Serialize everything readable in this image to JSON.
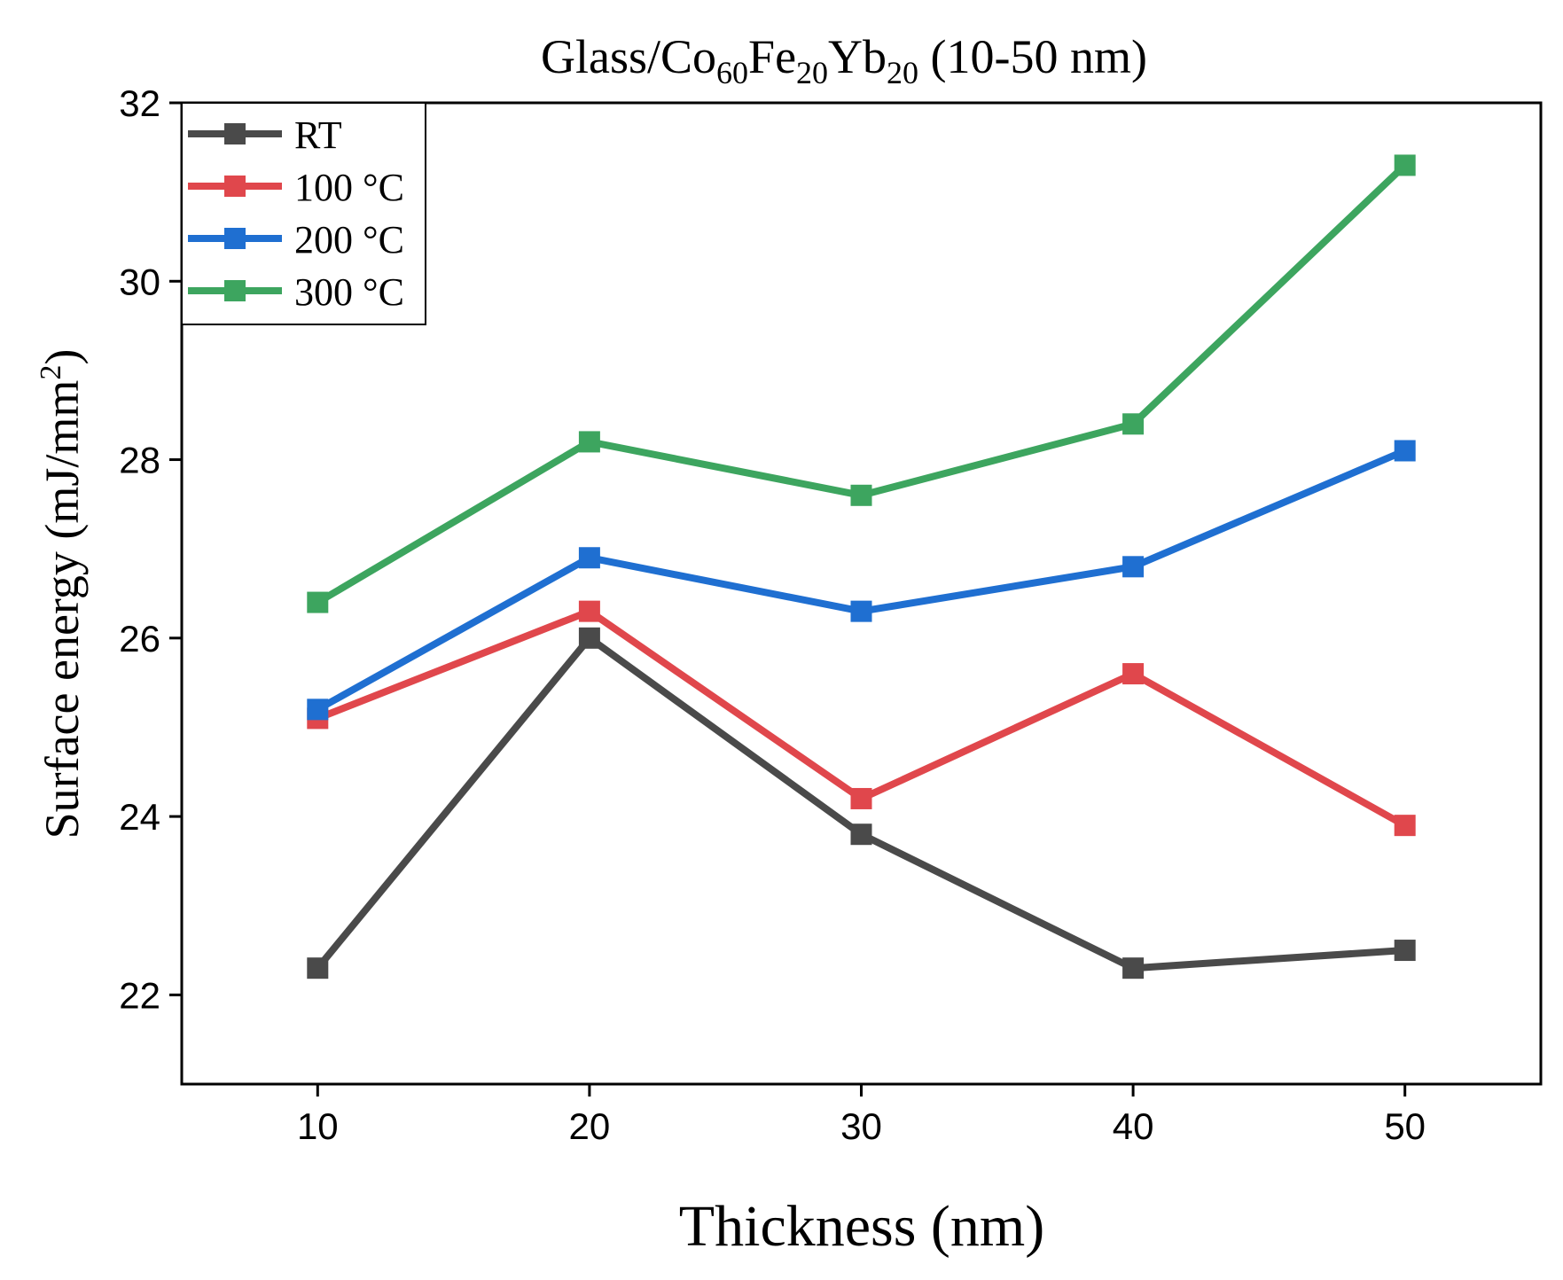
{
  "chart_data": {
    "type": "line",
    "title": {
      "prefix": "Glass/Co",
      "sub1": "60",
      "mid1": "Fe",
      "sub2": "20",
      "mid2": "Yb",
      "sub3": "20",
      "suffix": " (10-50 nm)"
    },
    "xlabel": "Thickness (nm)",
    "ylabel": {
      "main": "Surface energy (mJ/mm",
      "sup": "2",
      "close": ")"
    },
    "x": [
      10,
      20,
      30,
      40,
      50
    ],
    "x_ticks": [
      "10",
      "20",
      "30",
      "40",
      "50"
    ],
    "y_ticks": [
      "22",
      "24",
      "26",
      "28",
      "30",
      "32"
    ],
    "xlim": [
      5,
      55
    ],
    "ylim": [
      21,
      32
    ],
    "legend_position": "top-left",
    "series": [
      {
        "name": "RT",
        "color": "#4a4a4a",
        "values": [
          22.3,
          26.0,
          23.8,
          22.3,
          22.5
        ]
      },
      {
        "name": "100 °C",
        "color": "#e0474c",
        "values": [
          25.1,
          26.3,
          24.2,
          25.6,
          23.9
        ]
      },
      {
        "name": "200 °C",
        "color": "#1f6fd1",
        "values": [
          25.2,
          26.9,
          26.3,
          26.8,
          28.1
        ]
      },
      {
        "name": "300 °C",
        "color": "#3da55f",
        "values": [
          26.4,
          28.2,
          27.6,
          28.4,
          31.3
        ]
      }
    ]
  }
}
